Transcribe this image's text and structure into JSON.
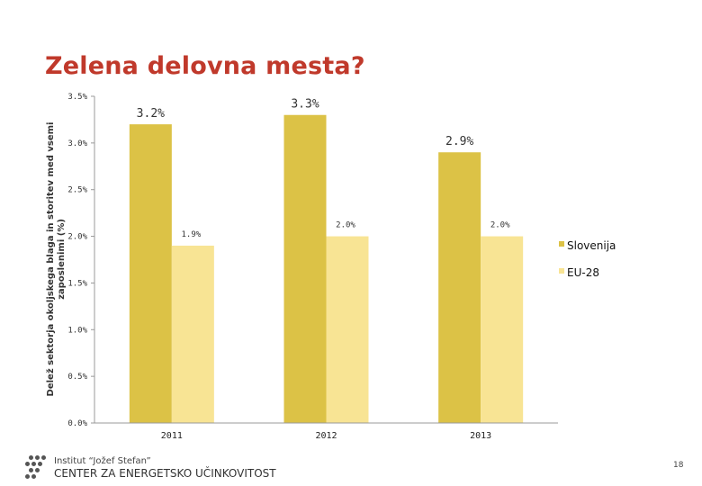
{
  "page": {
    "title": "Zelena delovna mesta?",
    "page_number": "18",
    "footer": {
      "institute": "Institut “Jožef Stefan”",
      "center": "CENTER ZA ENERGETSKO UČINKOVITOST"
    }
  },
  "colors": {
    "title": "#c0392b",
    "slovenija": "#dcc246",
    "eu28": "#f8e494"
  },
  "chart_data": {
    "type": "bar",
    "title": "",
    "ylabel": "Delež sektorja okoljskega blaga in storitev med vsemi zaposlenimi (%)",
    "xlabel": "",
    "categories": [
      "2011",
      "2012",
      "2013"
    ],
    "ylim": [
      0,
      3.5
    ],
    "yticks": [
      {
        "value": 0.0,
        "label": "0.0%"
      },
      {
        "value": 0.5,
        "label": "0.5%"
      },
      {
        "value": 1.0,
        "label": "1.0%"
      },
      {
        "value": 1.5,
        "label": "1.5%"
      },
      {
        "value": 2.0,
        "label": "2.0%"
      },
      {
        "value": 2.5,
        "label": "2.5%"
      },
      {
        "value": 3.0,
        "label": "3.0%"
      },
      {
        "value": 3.5,
        "label": "3.5%"
      }
    ],
    "series": [
      {
        "name": "Slovenija",
        "values": [
          3.2,
          3.3,
          2.9
        ],
        "labels": [
          "3.2%",
          "3.3%",
          "2.9%"
        ]
      },
      {
        "name": "EU-28",
        "values": [
          1.9,
          2.0,
          2.0
        ],
        "labels": [
          "1.9%",
          "2.0%",
          "2.0%"
        ]
      }
    ],
    "legend": "right",
    "grid": false
  }
}
